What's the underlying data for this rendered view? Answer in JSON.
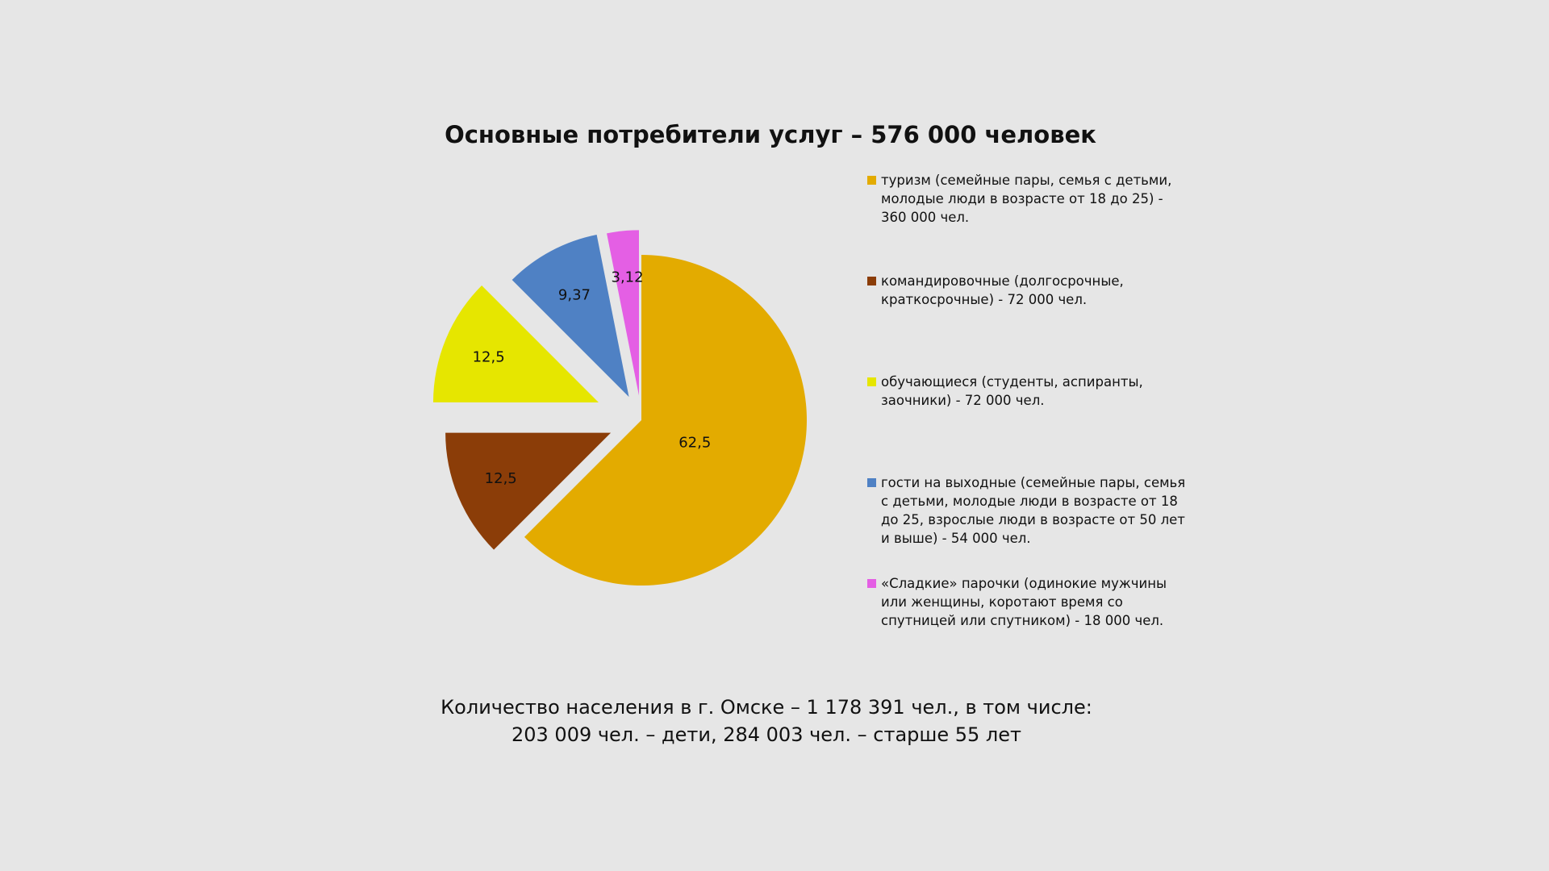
{
  "chart_data": {
    "type": "pie",
    "title": "Основные потребители услуг – 576 000 человек",
    "legend_position": "right",
    "slices": [
      {
        "value": 62.5,
        "label": "62,5",
        "color": "#e3ab00",
        "legend": "туризм (семейные пары, семья с детьми, молодые люди в возрасте от 18 до 25) - 360 000 чел."
      },
      {
        "value": 12.5,
        "label": "12,5",
        "color": "#8b3d08",
        "legend": "командировочные (долгосрочные, краткосрочные) - 72 000 чел."
      },
      {
        "value": 12.5,
        "label": "12,5",
        "color": "#e6e600",
        "legend": "обучающиеся (студенты, аспиранты, заочники) - 72 000 чел."
      },
      {
        "value": 9.37,
        "label": "9,37",
        "color": "#4f81c4",
        "legend": "гости на выходные (семейные пары, семья с детьми, молодые люди в возрасте от 18 до 25, взрослые люди в возрасте от 50 лет и выше) - 54 000 чел."
      },
      {
        "value": 3.12,
        "label": "3,12",
        "color": "#e45fe4",
        "legend": "«Сладкие» парочки (одинокие мужчины или женщины, коротают время со спутницей или спутником) - 18 000 чел."
      }
    ]
  },
  "footer": {
    "line1": "Количество населения в г. Омске – 1 178 391 чел., в том числе:",
    "line2": "203 009 чел. – дети, 284 003 чел. – старше 55 лет"
  }
}
